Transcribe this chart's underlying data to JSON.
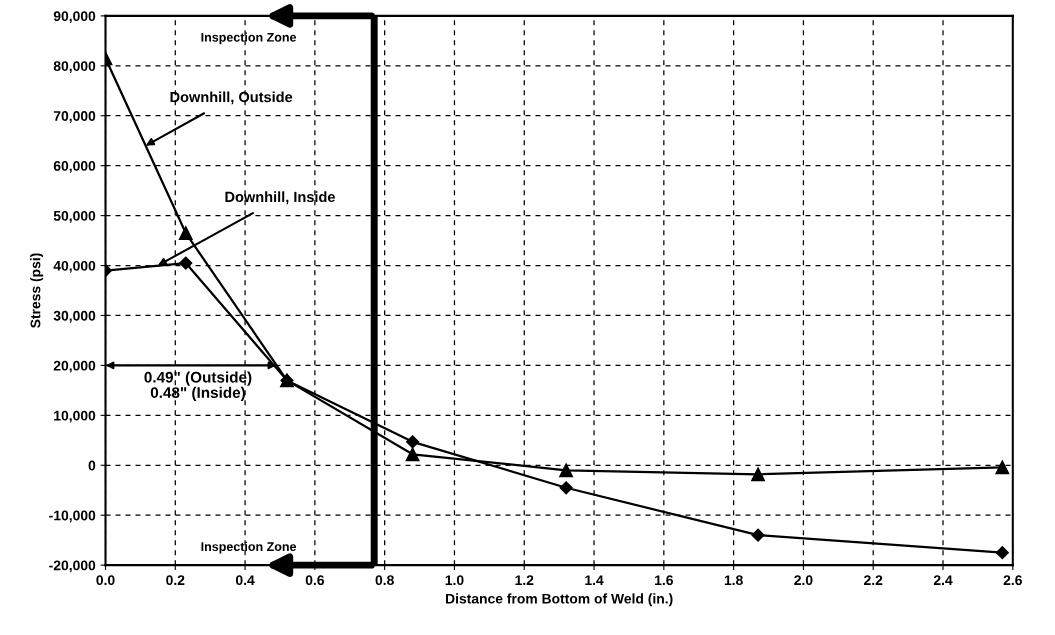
{
  "chart_data": {
    "type": "line",
    "xlabel": "Distance from Bottom of Weld (in.)",
    "ylabel": "Stress (psi)",
    "xlim": [
      0,
      2.6
    ],
    "ylim": [
      -20000,
      90000
    ],
    "xticks": [
      {
        "value": 0,
        "label": "0.0"
      },
      {
        "value": 0.2,
        "label": "0.2"
      },
      {
        "value": 0.4,
        "label": "0.4"
      },
      {
        "value": 0.6,
        "label": "0.6"
      },
      {
        "value": 0.8,
        "label": "0.8"
      },
      {
        "value": 1.0,
        "label": "1.0"
      },
      {
        "value": 1.2,
        "label": "1.2"
      },
      {
        "value": 1.4,
        "label": "1.4"
      },
      {
        "value": 1.6,
        "label": "1.6"
      },
      {
        "value": 1.8,
        "label": "1.8"
      },
      {
        "value": 2.0,
        "label": "2.0"
      },
      {
        "value": 2.2,
        "label": "2.2"
      },
      {
        "value": 2.4,
        "label": "2.4"
      },
      {
        "value": 2.6,
        "label": "2.6"
      }
    ],
    "yticks": [
      {
        "value": -20000,
        "label": "-20,000"
      },
      {
        "value": -10000,
        "label": "-10,000"
      },
      {
        "value": 0,
        "label": "0"
      },
      {
        "value": 10000,
        "label": "10,000"
      },
      {
        "value": 20000,
        "label": "20,000"
      },
      {
        "value": 30000,
        "label": "30,000"
      },
      {
        "value": 40000,
        "label": "40,000"
      },
      {
        "value": 50000,
        "label": "50,000"
      },
      {
        "value": 60000,
        "label": "60,000"
      },
      {
        "value": 70000,
        "label": "70,000"
      },
      {
        "value": 80000,
        "label": "80,000"
      },
      {
        "value": 90000,
        "label": "90,000"
      }
    ],
    "grid": true,
    "legend": false,
    "line_style": "solid",
    "series": [
      {
        "name": "Downhill, Outside",
        "color": "#000000",
        "marker": "triangle",
        "x": [
          0,
          0.23,
          0.52,
          0.88,
          1.32,
          1.87,
          2.57
        ],
        "values": [
          81500,
          46500,
          17000,
          2200,
          -1000,
          -1800,
          -400
        ]
      },
      {
        "name": "Downhill, Inside",
        "color": "#000000",
        "marker": "diamond",
        "x": [
          0,
          0.23,
          0.52,
          0.88,
          1.32,
          1.87,
          2.57
        ],
        "values": [
          39000,
          40500,
          17000,
          4700,
          -4500,
          -14000,
          -17500
        ]
      }
    ],
    "ref_lines": [
      {
        "axis": "x",
        "value": 0.77,
        "color": "#000000"
      }
    ],
    "annotations": [
      "Inspection Zone",
      "Inspection Zone",
      {
        "text": "0.49\" (Outside)\n0.48\" (Inside)",
        "x": 0.49,
        "y": 20000
      }
    ]
  }
}
